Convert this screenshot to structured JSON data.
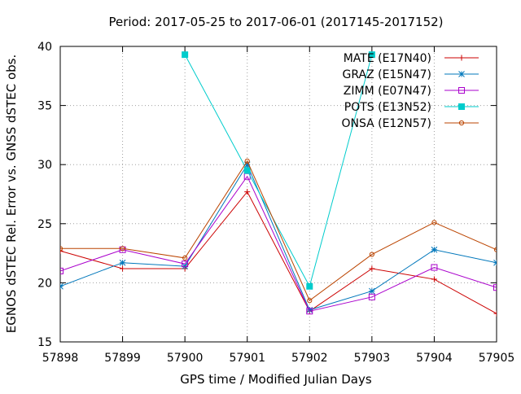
{
  "chart_data": {
    "type": "line",
    "title": "Period: 2017-05-25 to 2017-06-01 (2017145-2017152)",
    "xlabel": "GPS time / Modified Julian Days",
    "ylabel": "EGNOS dSTEC Rel. Error vs. GNSS dSTEC obs.",
    "xlim": [
      57898,
      57905
    ],
    "ylim": [
      15,
      40
    ],
    "xticks": [
      "57898",
      "57899",
      "57900",
      "57901",
      "57902",
      "57903",
      "57904",
      "57905"
    ],
    "yticks": [
      "15",
      "20",
      "25",
      "30",
      "35",
      "40"
    ],
    "grid": true,
    "legend_position": "top-right",
    "x": [
      57898,
      57899,
      57900,
      57901,
      57902,
      57903,
      57904,
      57905
    ],
    "series": [
      {
        "name": "MATE (E17N40)",
        "color": "#cc0000",
        "marker": "plus",
        "values": [
          22.7,
          21.2,
          21.2,
          27.7,
          17.6,
          21.2,
          20.3,
          17.4
        ]
      },
      {
        "name": "GRAZ (E15N47)",
        "color": "#0077bb",
        "marker": "star",
        "values": [
          19.7,
          21.7,
          21.4,
          30.0,
          17.7,
          19.3,
          22.8,
          21.7
        ]
      },
      {
        "name": "ZIMM (E07N47)",
        "color": "#aa00cc",
        "marker": "square-open",
        "values": [
          21.0,
          22.8,
          21.6,
          29.0,
          17.6,
          18.8,
          21.3,
          19.6
        ]
      },
      {
        "name": "POTS (E13N52)",
        "color": "#00cccc",
        "marker": "square-filled",
        "values": [
          null,
          null,
          39.3,
          29.5,
          19.7,
          39.3,
          null,
          null
        ]
      },
      {
        "name": "ONSA (E12N57)",
        "color": "#bb4400",
        "marker": "circle-open",
        "values": [
          22.9,
          22.9,
          22.1,
          30.3,
          18.5,
          22.4,
          25.1,
          22.8
        ]
      }
    ]
  }
}
